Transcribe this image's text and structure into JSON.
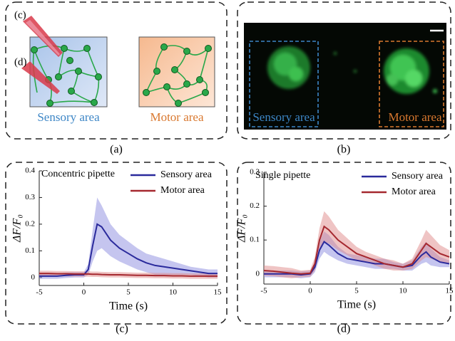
{
  "panels": {
    "a": {
      "caption": "(a)",
      "left_label": "Sensory area",
      "right_label": "Motor area",
      "pipette_labels": [
        "(c)",
        "(d)"
      ]
    },
    "b": {
      "caption": "(b)",
      "left_label": "Sensory area",
      "right_label": "Motor area"
    }
  },
  "chart_data": [
    {
      "type": "line",
      "title": "Concentric pipette",
      "caption": "(c)",
      "xlabel": "Time (s)",
      "ylabel": "ΔF/F₀",
      "x": [
        -5,
        -4,
        -3,
        -2,
        -1,
        0,
        0.5,
        1,
        1.5,
        2,
        3,
        4,
        5,
        6,
        7,
        8,
        9,
        10,
        11,
        12,
        13,
        14,
        15
      ],
      "xlim": [
        -5,
        15
      ],
      "xticks": [
        -5,
        0,
        5,
        10,
        15
      ],
      "ylim": [
        -0.03,
        0.4
      ],
      "yticks": [
        0,
        0.1,
        0.2,
        0.3,
        0.4
      ],
      "legend": "upper right",
      "series": [
        {
          "name": "Sensory area",
          "color": "#2a2a9c",
          "band_color": "#8c8ce0",
          "values": [
            0.005,
            0.005,
            0.005,
            0.008,
            0.01,
            0.01,
            0.03,
            0.12,
            0.2,
            0.19,
            0.14,
            0.11,
            0.09,
            0.07,
            0.055,
            0.045,
            0.04,
            0.035,
            0.03,
            0.025,
            0.02,
            0.015,
            0.015
          ],
          "errors": [
            0.01,
            0.01,
            0.01,
            0.01,
            0.01,
            0.01,
            0.02,
            0.06,
            0.1,
            0.08,
            0.06,
            0.05,
            0.045,
            0.04,
            0.035,
            0.035,
            0.03,
            0.025,
            0.02,
            0.015,
            0.015,
            0.015,
            0.015
          ]
        },
        {
          "name": "Motor area",
          "color": "#a5282f",
          "band_color": "#e08a8a",
          "values": [
            0.015,
            0.015,
            0.014,
            0.014,
            0.013,
            0.013,
            0.013,
            0.012,
            0.012,
            0.011,
            0.01,
            0.01,
            0.009,
            0.008,
            0.008,
            0.007,
            0.007,
            0.006,
            0.006,
            0.005,
            0.005,
            0.005,
            0.005
          ],
          "errors": [
            0.01,
            0.01,
            0.01,
            0.01,
            0.01,
            0.01,
            0.01,
            0.01,
            0.01,
            0.01,
            0.01,
            0.01,
            0.01,
            0.01,
            0.01,
            0.01,
            0.01,
            0.01,
            0.01,
            0.01,
            0.01,
            0.01,
            0.01
          ]
        }
      ]
    },
    {
      "type": "line",
      "title": "Single pipette",
      "caption": "(d)",
      "xlabel": "Time (s)",
      "ylabel": "ΔF/F₀",
      "x": [
        -5,
        -4,
        -3,
        -2,
        -1,
        0,
        0.5,
        1,
        1.5,
        2,
        3,
        4,
        5,
        6,
        7,
        8,
        9,
        10,
        11,
        12,
        12.5,
        13,
        14,
        15
      ],
      "xlim": [
        -5,
        15
      ],
      "xticks": [
        -5,
        0,
        5,
        10,
        15
      ],
      "ylim": [
        -0.03,
        0.3
      ],
      "yticks": [
        0,
        0.1,
        0.2,
        0.3
      ],
      "legend": "upper right",
      "series": [
        {
          "name": "Sensory area",
          "color": "#2a2a9c",
          "band_color": "#8c8ce0",
          "values": [
            0.0,
            0.0,
            0.0,
            0.0,
            -0.003,
            0.0,
            0.02,
            0.07,
            0.095,
            0.085,
            0.06,
            0.045,
            0.04,
            0.035,
            0.03,
            0.03,
            0.025,
            0.02,
            0.025,
            0.055,
            0.065,
            0.05,
            0.035,
            0.03
          ],
          "errors": [
            0.01,
            0.01,
            0.01,
            0.01,
            0.01,
            0.01,
            0.015,
            0.025,
            0.03,
            0.03,
            0.02,
            0.015,
            0.015,
            0.015,
            0.015,
            0.015,
            0.01,
            0.01,
            0.015,
            0.025,
            0.03,
            0.025,
            0.015,
            0.01
          ]
        },
        {
          "name": "Motor area",
          "color": "#a5282f",
          "band_color": "#e08a8a",
          "values": [
            0.01,
            0.008,
            0.005,
            0.002,
            0.0,
            0.002,
            0.03,
            0.1,
            0.14,
            0.13,
            0.1,
            0.08,
            0.06,
            0.05,
            0.04,
            0.03,
            0.025,
            0.02,
            0.03,
            0.07,
            0.09,
            0.08,
            0.06,
            0.05
          ],
          "errors": [
            0.015,
            0.015,
            0.015,
            0.015,
            0.01,
            0.01,
            0.02,
            0.035,
            0.045,
            0.04,
            0.03,
            0.025,
            0.02,
            0.015,
            0.015,
            0.015,
            0.015,
            0.01,
            0.015,
            0.03,
            0.04,
            0.035,
            0.025,
            0.02
          ]
        }
      ]
    }
  ]
}
